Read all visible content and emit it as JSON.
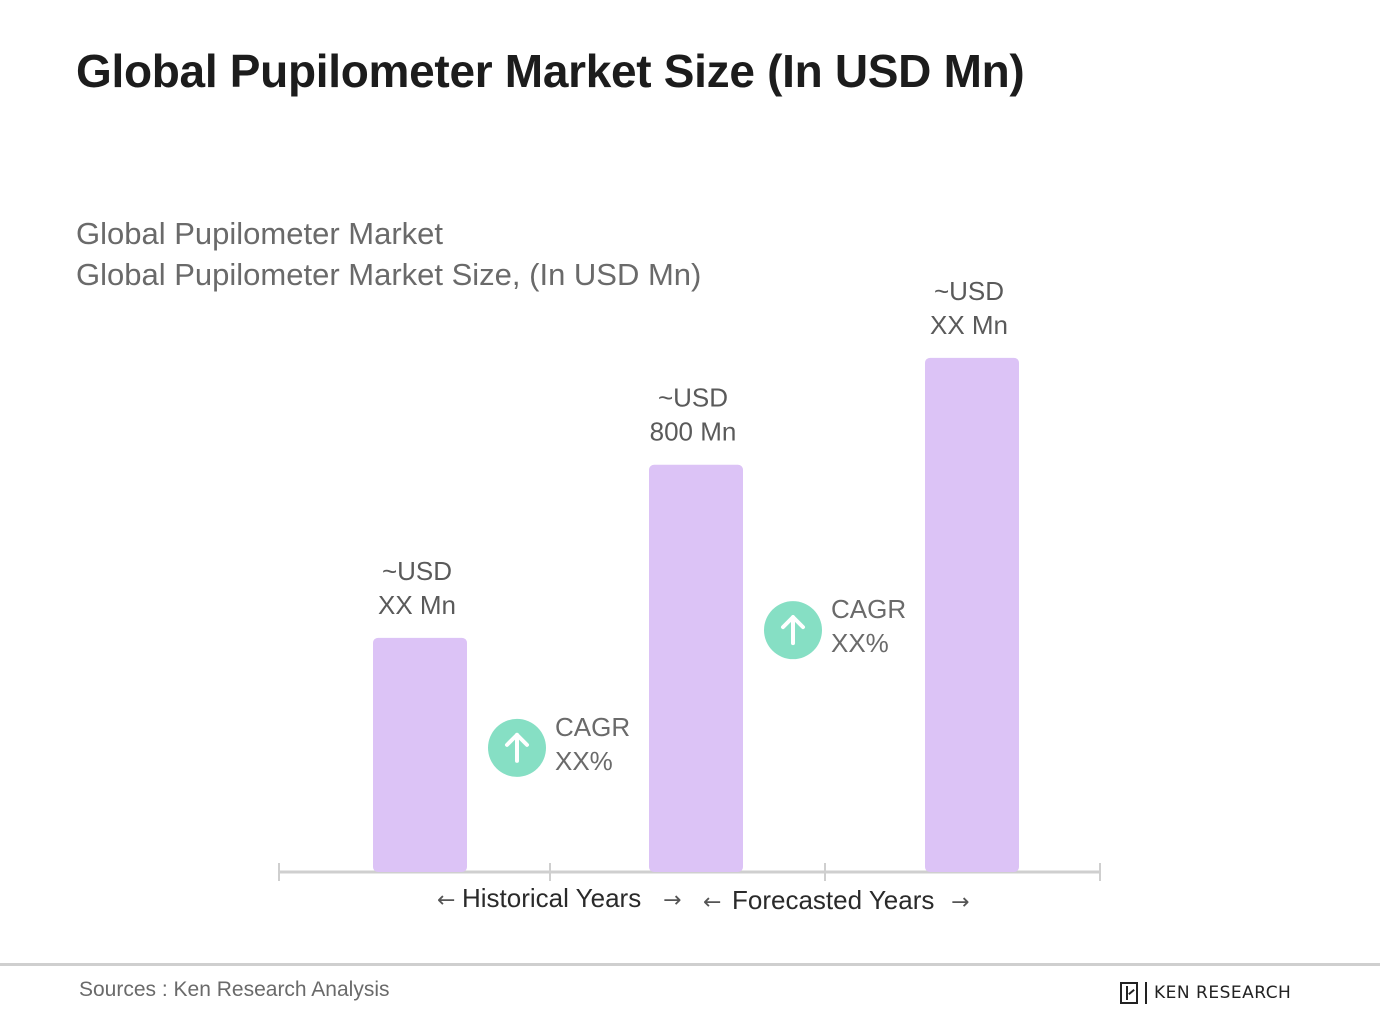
{
  "page_title": "Global Pupilometer Market Size (In USD Mn)",
  "footer": {
    "sources": "Sources : Ken Research Analysis",
    "brand": "KEN RESEARCH",
    "brand_icon": "ken-research-logo-icon"
  },
  "colors": {
    "bar": "#dcc3f6",
    "cagr_badge": "#86dfc4",
    "axis": "#cfcfcf"
  },
  "chart_data": {
    "type": "bar",
    "title": "Global Pupilometer Market",
    "subtitle": "Global Pupilometer Market Size, (In USD Mn)",
    "xlabel": "",
    "ylabel": "",
    "categories": [
      "",
      "",
      ""
    ],
    "values": [
      460,
      800,
      1010
    ],
    "value_labels": [
      [
        "~USD",
        "XX Mn"
      ],
      [
        "~USD",
        "800 Mn"
      ],
      [
        "~USD",
        "XX Mn"
      ]
    ],
    "ylim": [
      0,
      1100
    ],
    "grid": false,
    "legend": "none",
    "annotations": [
      {
        "type": "cagr",
        "between": [
          0,
          1
        ],
        "line1": "CAGR",
        "line2": "XX%",
        "icon": "arrow-up-icon"
      },
      {
        "type": "cagr",
        "between": [
          1,
          2
        ],
        "line1": "CAGR",
        "line2": "XX%",
        "icon": "arrow-up-icon"
      }
    ],
    "periods": [
      {
        "label": "Historical Years",
        "left_arrow": "←",
        "right_arrow": "→"
      },
      {
        "label": "Forecasted Years",
        "left_arrow": "←",
        "right_arrow": "→"
      }
    ]
  }
}
